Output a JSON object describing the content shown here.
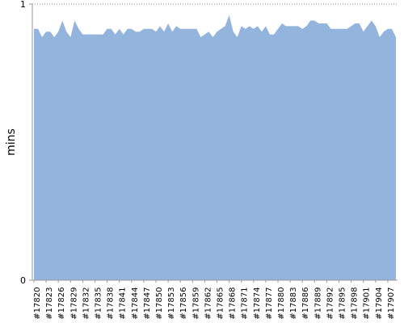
{
  "chart_data": {
    "type": "area",
    "y_label": "mins",
    "color": "#92b4dd",
    "grid": true,
    "ylim": [
      0,
      1
    ],
    "yticks": [
      0,
      1
    ],
    "categories": [
      "#17820",
      null,
      null,
      "#17823",
      null,
      null,
      "#17826",
      null,
      null,
      "#17829",
      null,
      null,
      "#17832",
      null,
      null,
      "#17835",
      null,
      null,
      "#17838",
      null,
      null,
      "#17841",
      null,
      null,
      "#17844",
      null,
      null,
      "#17847",
      null,
      null,
      "#17850",
      null,
      null,
      "#17853",
      null,
      null,
      "#17856",
      null,
      null,
      "#17859",
      null,
      null,
      "#17862",
      null,
      null,
      "#17865",
      null,
      null,
      "#17868",
      null,
      null,
      "#17871",
      null,
      null,
      "#17874",
      null,
      null,
      "#17877",
      null,
      null,
      "#17880",
      null,
      null,
      "#17883",
      null,
      null,
      "#17886",
      null,
      null,
      "#17889",
      null,
      null,
      "#17892",
      null,
      null,
      "#17895",
      null,
      null,
      "#17898",
      null,
      null,
      "#17901",
      null,
      null,
      "#17904",
      null,
      null,
      "#17907",
      null,
      null
    ],
    "values": [
      0.91,
      0.91,
      0.88,
      0.9,
      0.9,
      0.88,
      0.9,
      0.94,
      0.9,
      0.88,
      0.94,
      0.91,
      0.89,
      0.89,
      0.89,
      0.89,
      0.89,
      0.89,
      0.91,
      0.91,
      0.89,
      0.91,
      0.89,
      0.91,
      0.91,
      0.9,
      0.9,
      0.91,
      0.91,
      0.91,
      0.9,
      0.92,
      0.9,
      0.93,
      0.9,
      0.92,
      0.91,
      0.91,
      0.91,
      0.91,
      0.91,
      0.88,
      0.89,
      0.9,
      0.88,
      0.9,
      0.91,
      0.92,
      0.96,
      0.9,
      0.88,
      0.92,
      0.91,
      0.92,
      0.91,
      0.92,
      0.9,
      0.92,
      0.89,
      0.89,
      0.91,
      0.93,
      0.92,
      0.92,
      0.92,
      0.92,
      0.91,
      0.92,
      0.94,
      0.94,
      0.93,
      0.93,
      0.93,
      0.91,
      0.91,
      0.91,
      0.91,
      0.91,
      0.92,
      0.93,
      0.93,
      0.9,
      0.92,
      0.94,
      0.92,
      0.88,
      0.9,
      0.91,
      0.91,
      0.88
    ]
  }
}
